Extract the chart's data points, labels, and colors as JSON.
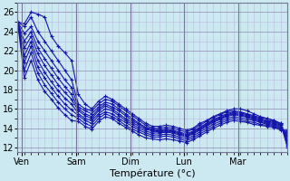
{
  "xlabel": "Température (°c)",
  "background_color": "#cce8f0",
  "plot_bg_color": "#cce8f0",
  "line_color": "#1414aa",
  "marker": "+",
  "ylim": [
    11.5,
    27
  ],
  "yticks": [
    12,
    14,
    16,
    18,
    20,
    22,
    24,
    26
  ],
  "day_labels": [
    "Ven",
    "Sam",
    "Dim",
    "Lun",
    "Mar"
  ],
  "day_ticks": [
    2,
    26,
    50,
    74,
    98
  ],
  "day_vlines": [
    2,
    26,
    50,
    74,
    98
  ],
  "xlim": [
    0,
    120
  ],
  "n_points": 41,
  "x_step": 3,
  "series": [
    [
      25.0,
      24.8,
      26.0,
      25.8,
      25.5,
      23.5,
      22.5,
      21.8,
      21.0,
      17.5,
      16.5,
      16.0,
      16.8,
      17.3,
      17.0,
      16.5,
      16.0,
      15.5,
      15.0,
      14.5,
      14.2,
      14.2,
      14.3,
      14.2,
      14.0,
      13.8,
      14.0,
      14.5,
      14.8,
      15.2,
      15.5,
      15.8,
      16.0,
      16.0,
      15.8,
      15.5,
      15.2,
      15.0,
      14.8,
      14.5,
      12.0
    ],
    [
      25.0,
      24.5,
      25.5,
      24.0,
      23.0,
      22.0,
      21.0,
      20.0,
      19.0,
      16.5,
      16.0,
      15.8,
      16.5,
      17.0,
      16.8,
      16.3,
      15.8,
      15.3,
      14.8,
      14.3,
      14.0,
      14.0,
      14.1,
      14.0,
      13.8,
      13.6,
      13.9,
      14.3,
      14.7,
      15.1,
      15.4,
      15.7,
      15.8,
      15.7,
      15.5,
      15.3,
      15.1,
      15.0,
      14.8,
      14.5,
      12.2
    ],
    [
      25.0,
      23.8,
      24.5,
      23.0,
      22.0,
      21.0,
      20.0,
      19.0,
      18.2,
      16.2,
      15.8,
      15.5,
      16.2,
      16.7,
      16.5,
      16.0,
      15.5,
      15.0,
      14.5,
      14.1,
      13.9,
      13.8,
      13.9,
      13.8,
      13.6,
      13.4,
      13.7,
      14.1,
      14.5,
      14.9,
      15.2,
      15.5,
      15.7,
      15.6,
      15.4,
      15.2,
      15.0,
      14.8,
      14.7,
      14.4,
      12.5
    ],
    [
      25.0,
      23.0,
      24.0,
      22.3,
      21.2,
      20.2,
      19.2,
      18.3,
      17.5,
      16.0,
      15.5,
      15.2,
      16.0,
      16.5,
      16.2,
      15.8,
      15.3,
      14.8,
      14.4,
      14.0,
      13.8,
      13.7,
      13.8,
      13.7,
      13.5,
      13.3,
      13.6,
      14.0,
      14.4,
      14.8,
      15.1,
      15.4,
      15.6,
      15.5,
      15.3,
      15.1,
      14.9,
      14.7,
      14.6,
      14.3,
      12.8
    ],
    [
      25.0,
      22.3,
      23.5,
      21.7,
      20.5,
      19.5,
      18.5,
      17.7,
      17.0,
      15.8,
      15.3,
      15.0,
      15.8,
      16.3,
      16.0,
      15.5,
      15.0,
      14.6,
      14.2,
      13.9,
      13.7,
      13.6,
      13.7,
      13.6,
      13.4,
      13.2,
      13.5,
      13.9,
      14.3,
      14.7,
      15.0,
      15.3,
      15.5,
      15.4,
      15.2,
      15.0,
      14.8,
      14.6,
      14.5,
      14.2,
      13.0
    ],
    [
      25.0,
      21.5,
      23.0,
      21.0,
      19.8,
      18.8,
      17.9,
      17.1,
      16.5,
      15.5,
      15.0,
      14.8,
      15.5,
      16.0,
      15.8,
      15.3,
      14.8,
      14.4,
      14.0,
      13.7,
      13.5,
      13.5,
      13.6,
      13.5,
      13.3,
      13.1,
      13.4,
      13.8,
      14.2,
      14.6,
      14.9,
      15.2,
      15.4,
      15.3,
      15.1,
      14.9,
      14.7,
      14.5,
      14.4,
      14.1,
      13.2
    ],
    [
      25.0,
      20.8,
      22.5,
      20.3,
      19.2,
      18.2,
      17.3,
      16.5,
      15.9,
      15.3,
      14.8,
      14.5,
      15.3,
      15.7,
      15.5,
      15.0,
      14.6,
      14.2,
      13.8,
      13.5,
      13.3,
      13.3,
      13.4,
      13.3,
      13.1,
      12.9,
      13.2,
      13.6,
      14.0,
      14.4,
      14.7,
      15.0,
      15.2,
      15.1,
      14.9,
      14.8,
      14.6,
      14.4,
      14.3,
      14.0,
      13.4
    ],
    [
      25.0,
      20.0,
      21.8,
      19.7,
      18.5,
      17.6,
      16.7,
      16.0,
      15.4,
      15.0,
      14.5,
      14.2,
      15.0,
      15.5,
      15.2,
      14.8,
      14.3,
      13.9,
      13.6,
      13.3,
      13.1,
      13.1,
      13.2,
      13.1,
      12.9,
      12.7,
      13.0,
      13.4,
      13.8,
      14.2,
      14.5,
      14.8,
      15.0,
      14.9,
      14.7,
      14.6,
      14.4,
      14.3,
      14.2,
      13.9,
      13.6
    ],
    [
      25.0,
      19.2,
      21.0,
      19.0,
      17.8,
      17.0,
      16.1,
      15.4,
      14.8,
      14.7,
      14.2,
      13.9,
      14.7,
      15.2,
      15.0,
      14.5,
      14.1,
      13.7,
      13.3,
      13.0,
      12.9,
      12.8,
      12.9,
      12.8,
      12.7,
      12.5,
      12.8,
      13.2,
      13.6,
      14.0,
      14.3,
      14.6,
      14.8,
      14.7,
      14.6,
      14.4,
      14.3,
      14.2,
      14.1,
      13.8,
      13.8
    ]
  ],
  "line_styles": [
    "solid",
    "solid",
    "solid",
    "solid",
    "solid",
    "solid",
    "solid",
    "solid",
    "solid"
  ],
  "linewidth": 0.8,
  "markersize": 2.5,
  "grid_color_major": "#9999bb",
  "grid_color_minor": "#bbbbdd",
  "grid_linewidth_major": 0.6,
  "grid_linewidth_minor": 0.4,
  "tick_label_fontsize": 7,
  "axis_label_fontsize": 8
}
